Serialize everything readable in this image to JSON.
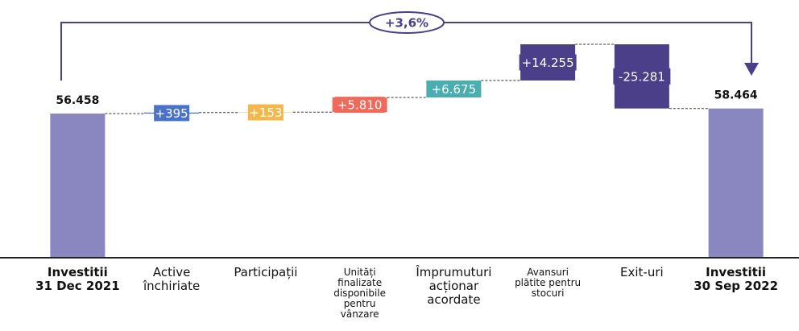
{
  "chart_data": {
    "type": "waterfall",
    "categories": [
      [
        "Investitii",
        "31 Dec 2021"
      ],
      [
        "Active",
        "închiriate"
      ],
      [
        "Participații"
      ],
      [
        "Unități",
        "finalizate",
        "disponibile",
        "pentru",
        "vânzare"
      ],
      [
        "Împrumuturi",
        "acționar",
        "acordate"
      ],
      [
        "Avansuri",
        "plătite pentru",
        "stocuri"
      ],
      [
        "Exit-uri"
      ],
      [
        "Investitii",
        "30 Sep 2022"
      ]
    ],
    "values": [
      56458,
      395,
      153,
      5810,
      6675,
      14255,
      -25281,
      58464
    ],
    "value_labels": [
      "56.458",
      "+395",
      "+153",
      "+5.810",
      "+6.675",
      "+14.255",
      "-25.281",
      "58.464"
    ],
    "totals": [
      true,
      false,
      false,
      false,
      false,
      false,
      false,
      true
    ],
    "colors": [
      "#8a87c0",
      "#4a72c8",
      "#f2b84b",
      "#ef6a5a",
      "#4aaeb0",
      "#4b3f8a",
      "#4b3f8a",
      "#8a87c0"
    ],
    "annotation": "+3,6%"
  }
}
